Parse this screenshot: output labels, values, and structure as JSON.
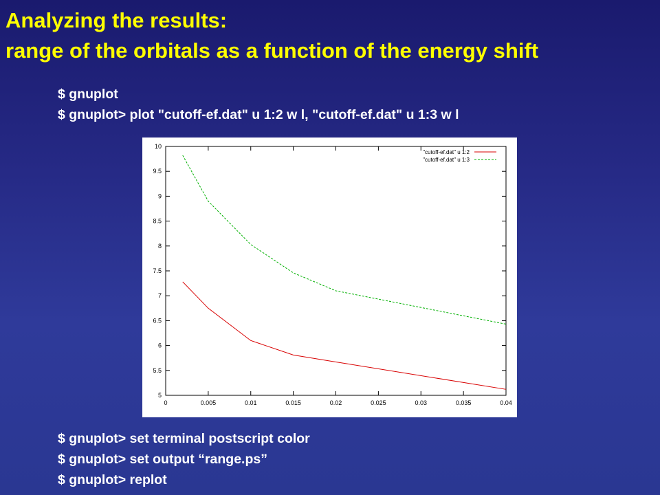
{
  "slide": {
    "title_line1": "Analyzing the results:",
    "title_line2": "range of the orbitals as a function of the energy shift",
    "commands_top": [
      "$ gnuplot",
      "$ gnuplot> plot \"cutoff-ef.dat\" u 1:2 w l, \"cutoff-ef.dat\" u 1:3 w l"
    ],
    "commands_bottom": [
      "$ gnuplot> set terminal postscript color",
      "$ gnuplot> set output “range.ps”",
      "$ gnuplot> replot"
    ],
    "colors": {
      "title": "#ffff00",
      "command_text": "#ffffff",
      "background": "#262a86"
    }
  },
  "chart_data": {
    "type": "line",
    "title": "",
    "xlabel": "",
    "ylabel": "",
    "xlim": [
      0,
      0.04
    ],
    "ylim": [
      5,
      10
    ],
    "x_ticks": [
      "0",
      "0.005",
      "0.01",
      "0.015",
      "0.02",
      "0.025",
      "0.03",
      "0.035",
      "0.04"
    ],
    "y_ticks": [
      "5",
      "5.5",
      "6",
      "6.5",
      "7",
      "7.5",
      "8",
      "8.5",
      "9",
      "9.5",
      "10"
    ],
    "grid": false,
    "legend_position": "top-right",
    "series": [
      {
        "name": "\"cutoff-ef.dat\" u 1:2",
        "color": "#d80000",
        "dash": "solid",
        "x": [
          0.002,
          0.005,
          0.01,
          0.015,
          0.02,
          0.04
        ],
        "y": [
          7.28,
          6.75,
          6.1,
          5.81,
          5.67,
          5.12
        ]
      },
      {
        "name": "\"cutoff-ef.dat\" u 1:3",
        "color": "#00b000",
        "dash": "dashed",
        "x": [
          0.002,
          0.005,
          0.01,
          0.015,
          0.02,
          0.04
        ],
        "y": [
          9.82,
          8.9,
          8.03,
          7.46,
          7.1,
          6.43
        ]
      }
    ]
  }
}
